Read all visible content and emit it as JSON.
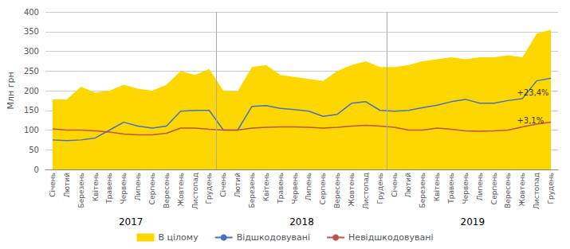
{
  "chart_data": {
    "type": "line",
    "categories": [
      "Січень",
      "Лютий",
      "Березень",
      "Квітень",
      "Травень",
      "Червень",
      "Липень",
      "Серпень",
      "Вересень",
      "Жовтень",
      "Листопад",
      "Грудень",
      "Січень",
      "Лютий",
      "Березень",
      "Квітень",
      "Травень",
      "Червень",
      "Липень",
      "Серпень",
      "Вересень",
      "Жовтень",
      "Листопад",
      "Грудень",
      "Січень",
      "Лютий",
      "Березень",
      "Квітень",
      "Травень",
      "Червень",
      "Липень",
      "Серпень",
      "Вересень",
      "Жовтень",
      "Листопад",
      "Грудень"
    ],
    "year_labels": [
      "2017",
      "2018",
      "2019"
    ],
    "series": [
      {
        "name": "В цілому",
        "type": "area",
        "color": "#FFD700",
        "values": [
          178,
          178,
          210,
          195,
          200,
          215,
          205,
          200,
          215,
          250,
          240,
          255,
          200,
          198,
          260,
          265,
          240,
          235,
          230,
          225,
          250,
          265,
          275,
          260,
          260,
          265,
          275,
          280,
          285,
          280,
          285,
          285,
          290,
          285,
          345,
          355
        ]
      },
      {
        "name": "Відшкодовувані",
        "type": "line",
        "color": "#4472C4",
        "values": [
          75,
          73,
          75,
          80,
          100,
          120,
          110,
          105,
          110,
          148,
          150,
          150,
          100,
          100,
          160,
          162,
          155,
          152,
          148,
          135,
          140,
          168,
          172,
          150,
          148,
          150,
          157,
          163,
          172,
          178,
          168,
          168,
          175,
          180,
          225,
          232
        ]
      },
      {
        "name": "Невідшкодовувані",
        "type": "line",
        "color": "#C0504D",
        "values": [
          103,
          100,
          100,
          98,
          95,
          90,
          88,
          88,
          92,
          105,
          105,
          102,
          100,
          100,
          105,
          107,
          108,
          108,
          107,
          105,
          107,
          110,
          112,
          110,
          107,
          100,
          100,
          105,
          102,
          98,
          97,
          98,
          100,
          108,
          115,
          120
        ]
      }
    ],
    "annotations": [
      {
        "text": "+23,4%",
        "x": 32.5,
        "y": 195
      },
      {
        "text": "+3,1%",
        "x": 32.5,
        "y": 125
      }
    ],
    "ylabel": "Млн грн",
    "ylim": [
      0,
      400
    ],
    "yticks": [
      0,
      50,
      100,
      150,
      200,
      250,
      300,
      350,
      400
    ],
    "grid": true,
    "legend": "bottom"
  }
}
